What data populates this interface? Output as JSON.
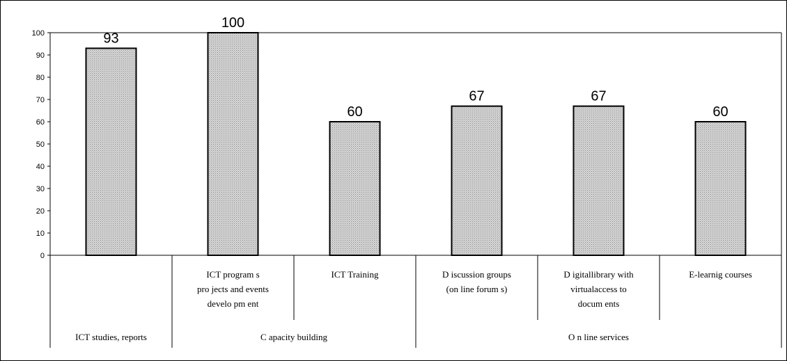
{
  "chart_data": {
    "type": "bar",
    "title": "",
    "xlabel": "",
    "ylabel": "",
    "ylim": [
      0,
      100
    ],
    "yticks": [
      0,
      10,
      20,
      30,
      40,
      50,
      60,
      70,
      80,
      90,
      100
    ],
    "grid": false,
    "legend": "none",
    "bar_fill": "#cfcfcf",
    "bar_stroke": "#000000",
    "categories": [
      "",
      "ICT programs projects and events development",
      "ICT Training",
      "Discussion groups (on line forums)",
      "Digital library with virtual access to documents",
      "E-learnig courses"
    ],
    "category_lines": [
      [],
      [
        "ICT program s",
        "pro jects and events",
        "develo pm ent"
      ],
      [
        "ICT Training"
      ],
      [
        "D iscussion groups",
        "(on line forum s)"
      ],
      [
        "D igitallibrary with",
        "virtualaccess to",
        "docum ents"
      ],
      [
        "E-learnig courses"
      ]
    ],
    "groups": [
      {
        "label": "ICT studies, reports",
        "span": [
          0,
          0
        ]
      },
      {
        "label": "C apacity building",
        "span": [
          1,
          2
        ]
      },
      {
        "label": "O n line services",
        "span": [
          3,
          5
        ]
      }
    ],
    "values": [
      93,
      100,
      60,
      67,
      67,
      60
    ],
    "data_labels": [
      "93",
      "100",
      "60",
      "67",
      "67",
      "60"
    ]
  }
}
